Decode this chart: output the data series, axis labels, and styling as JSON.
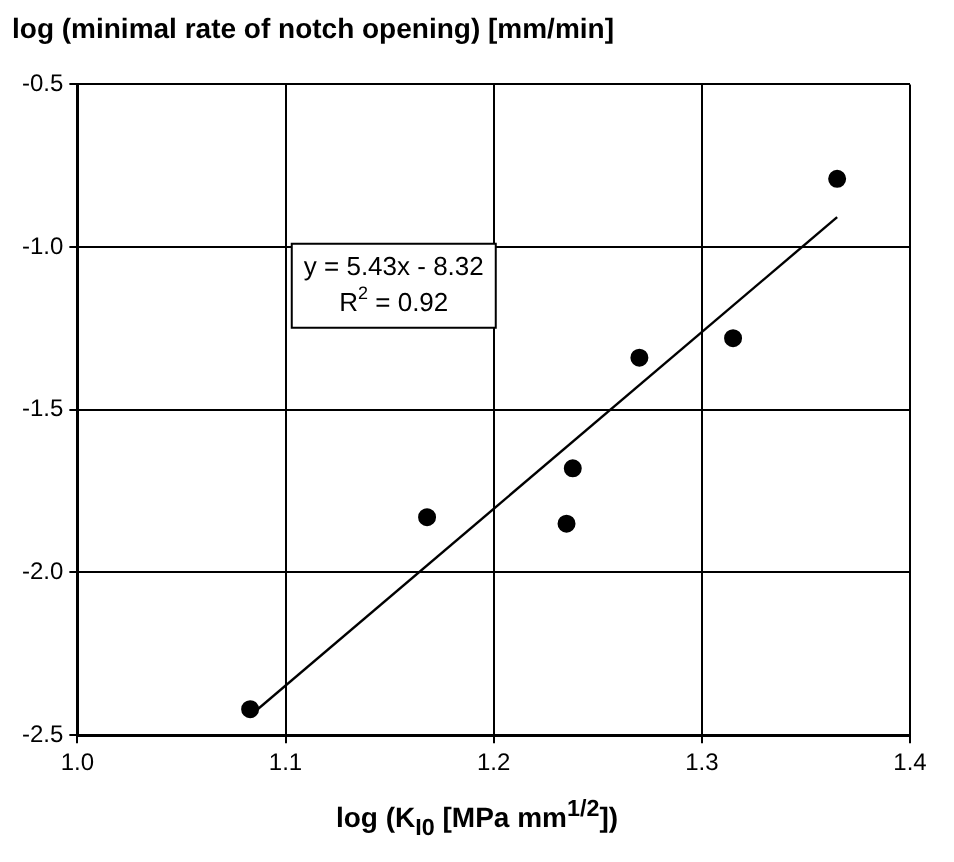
{
  "chart_data": {
    "type": "scatter",
    "ylabel": "log (minimal rate of notch opening) [mm/min]",
    "xlabel": "log (K$_{I0}$ [MPa mm$^{1/2}$])",
    "x": [
      1.083,
      1.168,
      1.235,
      1.238,
      1.27,
      1.315,
      1.365
    ],
    "series": [
      {
        "color": "#000000",
        "marker": "circle",
        "values": [
          -2.42,
          -1.83,
          -1.85,
          -1.68,
          -1.34,
          -1.28,
          -0.79
        ]
      },
      {
        "type": "line",
        "color": "#000000",
        "marker": "none",
        "x": [
          1.083,
          1.365
        ],
        "values": [
          -2.44,
          -0.908
        ]
      }
    ],
    "xlim": [
      1.0,
      1.4
    ],
    "xticks": [
      {
        "value": 1.0,
        "label": "1.0"
      },
      1.1,
      1.2,
      1.3,
      {
        "value": 1.4,
        "label": "1.4"
      }
    ],
    "ylim": [
      -2.5,
      -0.5
    ],
    "yticks": [
      -2.5,
      {
        "value": -2.0,
        "label": "-2.0"
      },
      -1.5,
      {
        "value": -1.0,
        "label": "-1.0"
      },
      -0.5
    ],
    "grid": true,
    "legend": false,
    "annotations": [
      "y = 5.43x - 8.32",
      "R$^{2}$ = 0.92"
    ]
  }
}
